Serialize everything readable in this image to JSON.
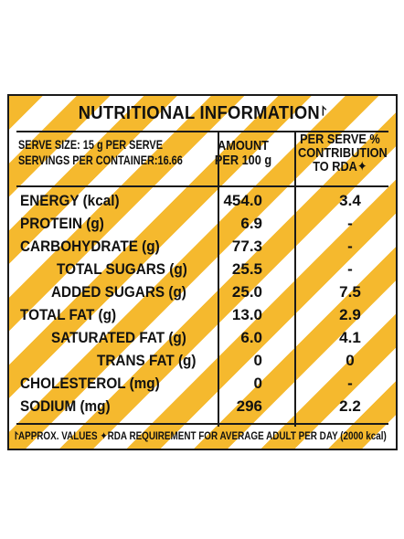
{
  "title": "NUTRITIONAL INFORMATION",
  "title_mark": "⨡",
  "serve": {
    "size": "SERVE SIZE: 15 g PER SERVE",
    "servings": "SERVINGS PER CONTAINER:16.66"
  },
  "columns": {
    "amount_line1": "AMOUNT",
    "amount_line2": "PER 100 g",
    "rda_line1": "PER SERVE %",
    "rda_line2": "CONTRIBUTION",
    "rda_line3": "TO RDA✦"
  },
  "rows": [
    {
      "label": "ENERGY (kcal)",
      "amount": "454.0",
      "rda": "3.4"
    },
    {
      "label": "PROTEIN (g)",
      "amount": "6.9",
      "rda": "-"
    },
    {
      "label": "CARBOHYDRATE (g)",
      "amount": "77.3",
      "rda": "-"
    },
    {
      "label": "TOTAL SUGARS (g)",
      "amount": "25.5",
      "rda": "-"
    },
    {
      "label": "ADDED SUGARS (g)",
      "amount": "25.0",
      "rda": "7.5"
    },
    {
      "label": "TOTAL FAT (g)",
      "amount": "13.0",
      "rda": "2.9"
    },
    {
      "label": "SATURATED FAT (g)",
      "amount": "6.0",
      "rda": "4.1"
    },
    {
      "label": "TRANS FAT (g)",
      "amount": "0",
      "rda": "0"
    },
    {
      "label": "CHOLESTEROL (mg)",
      "amount": "0",
      "rda": "-"
    },
    {
      "label": "SODIUM (mg)",
      "amount": "296",
      "rda": "2.2"
    }
  ],
  "footnote": "⨡APPROX. VALUES ✦RDA REQUIREMENT FOR AVERAGE ADULT PER DAY (2000 kcal)",
  "colors": {
    "stripe": "#f5b92e",
    "ink": "#1a1a1a"
  }
}
